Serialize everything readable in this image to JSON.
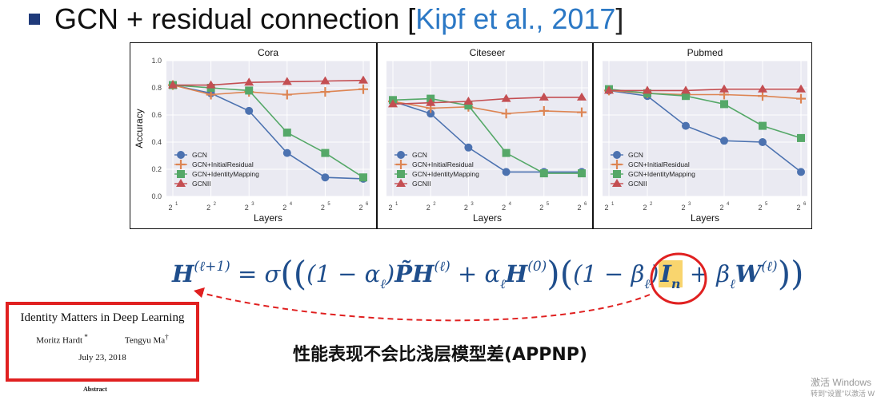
{
  "slide": {
    "title": "GCN + residual connection [",
    "citation": "Kipf et al., 2017",
    "title_close": "]",
    "bullet_color": "#1f3a7a",
    "citation_color": "#2b78c5"
  },
  "formula": {
    "lhs_base": "H",
    "lhs_sup": "(ℓ+1)",
    "eq": " = σ",
    "open_outer": "(",
    "open_inner": "(",
    "t1": "(1 − α",
    "t1_sub": "ℓ",
    "t1_close": ")",
    "ptilde": "P̃",
    "h1": "H",
    "h1_sup": "(ℓ)",
    "plus1": " + α",
    "plus1_sub": "ℓ",
    "h0": "H",
    "h0_sup": "(0)",
    "close_inner": ")",
    "open_second": "(",
    "t2": "(1 − β",
    "t2_sub": "ℓ",
    "t2_close": ")",
    "identity": "I",
    "identity_sub": "n",
    "plus2": " + β",
    "plus2_sub": "ℓ",
    "w": "W",
    "w_sup": "(ℓ)",
    "close_second": ")",
    "close_outer": ")"
  },
  "paper": {
    "title": "Identity Matters in Deep Learning",
    "author1": "Moritz Hardt",
    "author1_mark": " *",
    "author2": "Tengyu Ma",
    "author2_mark": "†",
    "date": "July 23, 2018",
    "abstract_label": "Abstract"
  },
  "annotation_cn": "性能表现不会比浅层模型差(APPNP)",
  "watermark": {
    "line1": "激活 Windows",
    "line2": "转到“设置”以激活 W"
  },
  "chart_data": [
    {
      "type": "line",
      "title": "Cora",
      "xlabel": "Layers",
      "ylabel": "Accuracy",
      "x_exponents": [
        1,
        2,
        3,
        4,
        5,
        6
      ],
      "x_tick_base": "2",
      "ylim": [
        0.0,
        1.0
      ],
      "yticks": [
        "0.0",
        "0.2",
        "0.4",
        "0.6",
        "0.8",
        "1.0"
      ],
      "grid": true,
      "legend_position": "bottom-left",
      "series": [
        {
          "name": "GCN",
          "color": "#4c72b0",
          "marker": "circle",
          "values": [
            0.82,
            0.76,
            0.63,
            0.32,
            0.14,
            0.13
          ]
        },
        {
          "name": "GCN+InitialResidual",
          "color": "#dd8452",
          "marker": "plus",
          "values": [
            0.82,
            0.75,
            0.77,
            0.75,
            0.77,
            0.79
          ]
        },
        {
          "name": "GCN+IdentityMapping",
          "color": "#55a868",
          "marker": "square",
          "values": [
            0.82,
            0.8,
            0.78,
            0.47,
            0.32,
            0.14
          ]
        },
        {
          "name": "GCNII",
          "color": "#c44e52",
          "marker": "triangle",
          "values": [
            0.82,
            0.82,
            0.84,
            0.845,
            0.85,
            0.855
          ]
        }
      ]
    },
    {
      "type": "line",
      "title": "Citeseer",
      "xlabel": "Layers",
      "ylabel": "",
      "x_exponents": [
        1,
        2,
        3,
        4,
        5,
        6
      ],
      "x_tick_base": "2",
      "ylim": [
        0.0,
        1.0
      ],
      "grid": true,
      "legend_position": "bottom-left",
      "series": [
        {
          "name": "GCN",
          "color": "#4c72b0",
          "marker": "circle",
          "values": [
            0.7,
            0.61,
            0.36,
            0.18,
            0.18,
            0.18
          ]
        },
        {
          "name": "GCN+InitialResidual",
          "color": "#dd8452",
          "marker": "plus",
          "values": [
            0.7,
            0.65,
            0.66,
            0.61,
            0.63,
            0.62
          ]
        },
        {
          "name": "GCN+IdentityMapping",
          "color": "#55a868",
          "marker": "square",
          "values": [
            0.71,
            0.72,
            0.67,
            0.32,
            0.17,
            0.17
          ]
        },
        {
          "name": "GCNII",
          "color": "#c44e52",
          "marker": "triangle",
          "values": [
            0.68,
            0.69,
            0.7,
            0.72,
            0.73,
            0.73
          ]
        }
      ]
    },
    {
      "type": "line",
      "title": "Pubmed",
      "xlabel": "Layers",
      "ylabel": "",
      "x_exponents": [
        1,
        2,
        3,
        4,
        5,
        6
      ],
      "x_tick_base": "2",
      "ylim": [
        0.0,
        1.0
      ],
      "grid": true,
      "legend_position": "bottom-left",
      "series": [
        {
          "name": "GCN",
          "color": "#4c72b0",
          "marker": "circle",
          "values": [
            0.78,
            0.74,
            0.52,
            0.41,
            0.4,
            0.18
          ]
        },
        {
          "name": "GCN+InitialResidual",
          "color": "#dd8452",
          "marker": "plus",
          "values": [
            0.78,
            0.76,
            0.75,
            0.75,
            0.74,
            0.72
          ]
        },
        {
          "name": "GCN+IdentityMapping",
          "color": "#55a868",
          "marker": "square",
          "values": [
            0.79,
            0.76,
            0.74,
            0.68,
            0.52,
            0.43
          ]
        },
        {
          "name": "GCNII",
          "color": "#c44e52",
          "marker": "triangle",
          "values": [
            0.78,
            0.78,
            0.78,
            0.79,
            0.79,
            0.79
          ]
        }
      ]
    }
  ]
}
